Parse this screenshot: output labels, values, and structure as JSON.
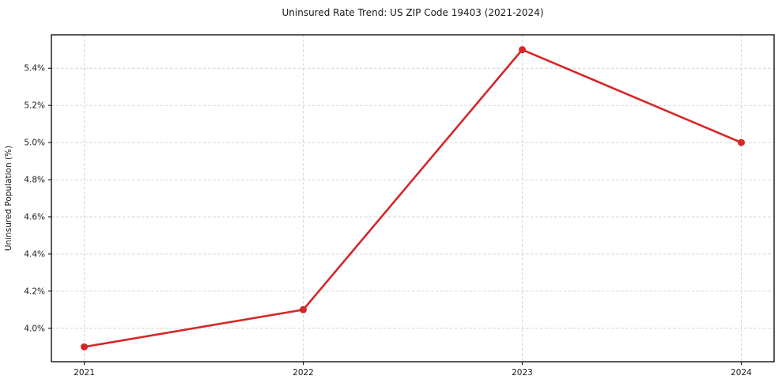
{
  "chart_data": {
    "type": "line",
    "title": "Uninsured Rate Trend: US ZIP Code 19403 (2021-2024)",
    "xlabel": "",
    "ylabel": "Uninsured Population (%)",
    "x": [
      2021,
      2022,
      2023,
      2024
    ],
    "x_tick_labels": [
      "2021",
      "2022",
      "2023",
      "2024"
    ],
    "series": [
      {
        "name": "uninsured-rate",
        "values": [
          3.9,
          4.1,
          5.5,
          5.0
        ]
      }
    ],
    "y_tick_values": [
      4.0,
      4.2,
      4.4,
      4.6,
      4.8,
      5.0,
      5.2,
      5.4
    ],
    "y_tick_labels": [
      "4.0%",
      "4.2%",
      "4.4%",
      "4.6%",
      "4.8%",
      "5.0%",
      "5.2%",
      "5.4%"
    ],
    "xlim": [
      2020.85,
      2024.15
    ],
    "ylim": [
      3.82,
      5.58
    ],
    "grid": true,
    "legend_position": "none",
    "colors": {
      "line": "#d62728",
      "marker": "#d62728",
      "grid": "#d2d2d2",
      "axis": "#000000",
      "text": "#1a1a1a",
      "background": "#ffffff"
    }
  }
}
